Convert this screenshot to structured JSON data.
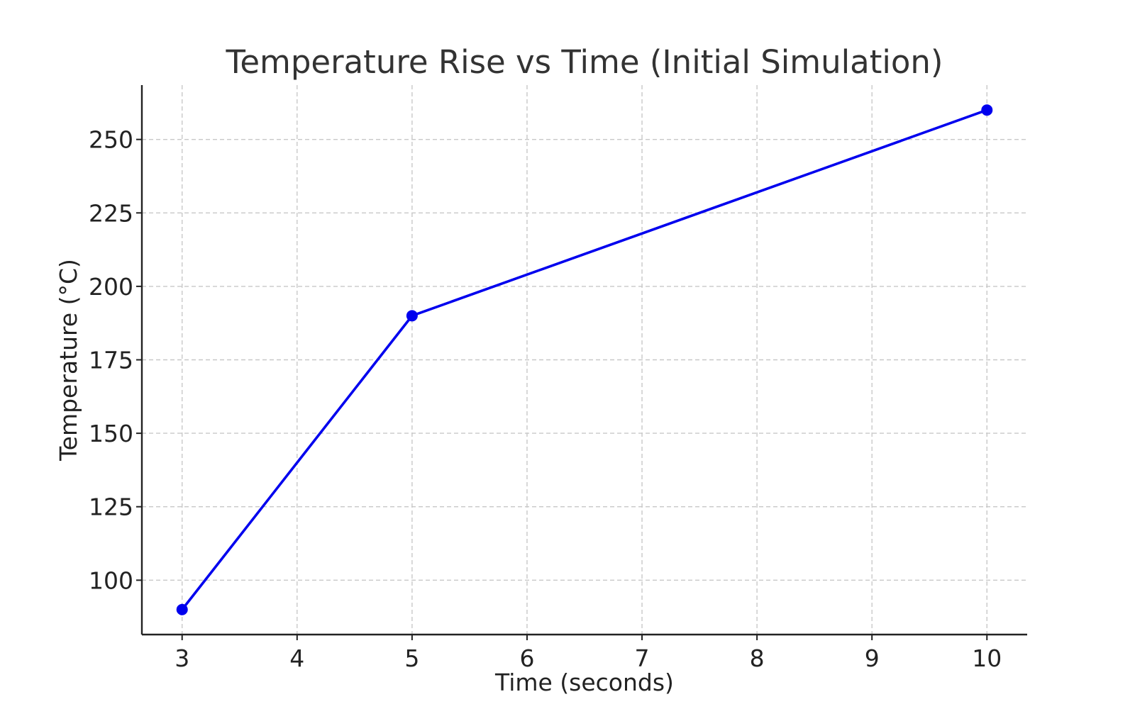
{
  "chart_data": {
    "type": "line",
    "title": "Temperature Rise vs Time (Initial Simulation)",
    "xlabel": "Time (seconds)",
    "ylabel": "Temperature (°C)",
    "xlim": [
      2.65,
      10.35
    ],
    "ylim": [
      81.5,
      268.5
    ],
    "x_ticks": [
      3,
      4,
      5,
      6,
      7,
      8,
      9,
      10
    ],
    "y_ticks": [
      100,
      125,
      150,
      175,
      200,
      225,
      250
    ],
    "grid": true,
    "legend": "none",
    "series": [
      {
        "color": "#0000ee",
        "marker": "circle",
        "points": [
          {
            "x": 3,
            "y": 90
          },
          {
            "x": 5,
            "y": 190
          },
          {
            "x": 10,
            "y": 260
          }
        ]
      }
    ]
  }
}
